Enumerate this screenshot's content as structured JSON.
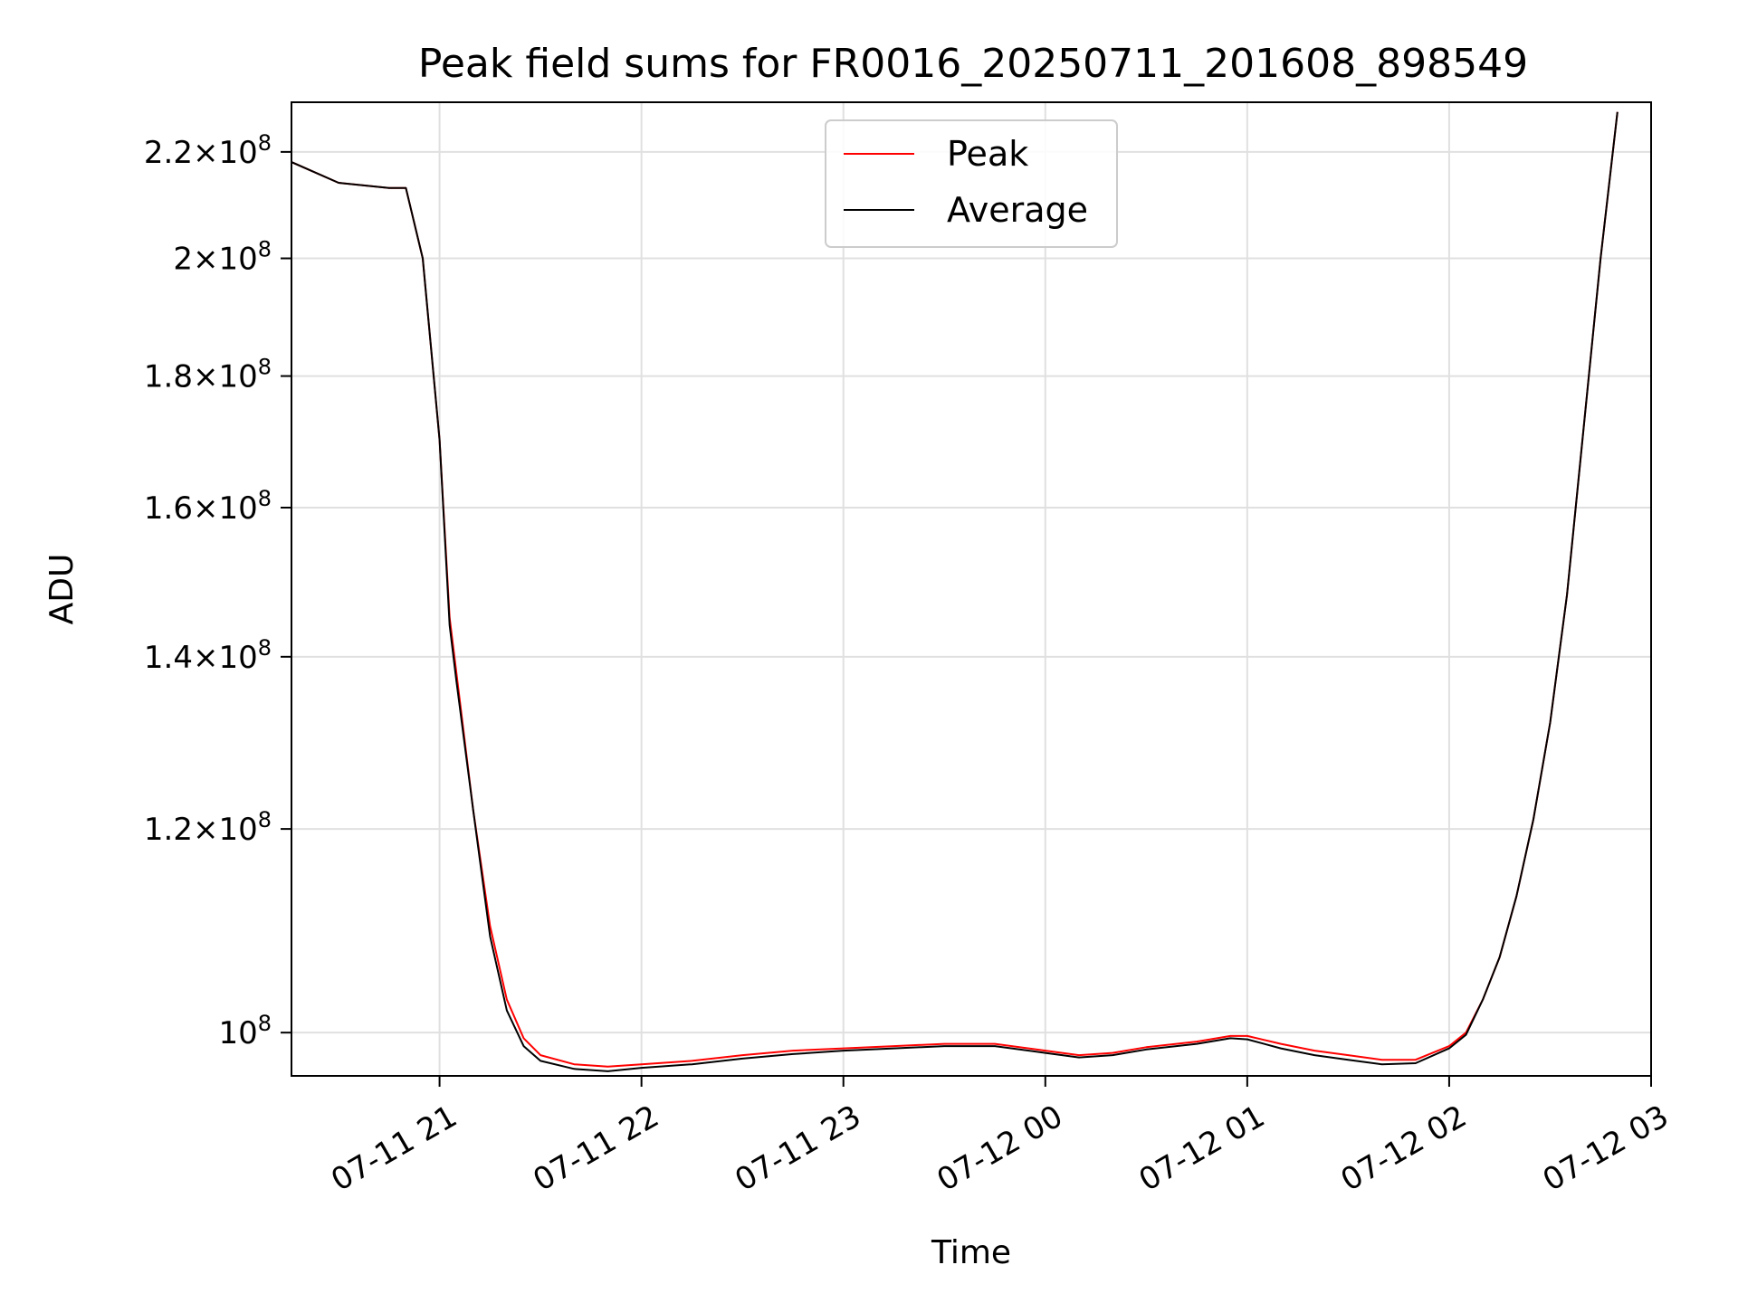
{
  "chart_data": {
    "type": "line",
    "title": "Peak field sums for FR0016_20250711_201608_898549",
    "xlabel": "Time",
    "ylabel": "ADU",
    "xlim": [
      "07-11 20:16",
      "07-12 03:00"
    ],
    "ylim": [
      96200000.0,
      230000000.0
    ],
    "yscale": "log",
    "grid": true,
    "legend_position": "top-center",
    "x_ticks": [
      "07-11 21",
      "07-11 22",
      "07-11 23",
      "07-12 00",
      "07-12 01",
      "07-12 02",
      "07-12 03"
    ],
    "y_ticks": [
      {
        "value": 100000000.0,
        "mantissa": "",
        "exponent": "8"
      },
      {
        "value": 120000000.0,
        "mantissa": "1.2",
        "exponent": "8"
      },
      {
        "value": 140000000.0,
        "mantissa": "1.4",
        "exponent": "8"
      },
      {
        "value": 160000000.0,
        "mantissa": "1.6",
        "exponent": "8"
      },
      {
        "value": 180000000.0,
        "mantissa": "1.8",
        "exponent": "8"
      },
      {
        "value": 200000000.0,
        "mantissa": "2",
        "exponent": "8"
      },
      {
        "value": 220000000.0,
        "mantissa": "2.2",
        "exponent": "8"
      }
    ],
    "series": [
      {
        "name": "Peak",
        "color": "#ff0000",
        "x": [
          "07-11 20:16",
          "07-11 20:30",
          "07-11 20:45",
          "07-11 20:50",
          "07-11 20:55",
          "07-11 21:00",
          "07-11 21:03",
          "07-11 21:05",
          "07-11 21:10",
          "07-11 21:15",
          "07-11 21:20",
          "07-11 21:25",
          "07-11 21:30",
          "07-11 21:40",
          "07-11 21:50",
          "07-11 22:00",
          "07-11 22:15",
          "07-11 22:30",
          "07-11 22:45",
          "07-11 23:00",
          "07-11 23:15",
          "07-11 23:30",
          "07-11 23:45",
          "07-12 00:00",
          "07-12 00:10",
          "07-12 00:20",
          "07-12 00:30",
          "07-12 00:45",
          "07-12 00:55",
          "07-12 01:00",
          "07-12 01:10",
          "07-12 01:20",
          "07-12 01:30",
          "07-12 01:40",
          "07-12 01:50",
          "07-12 02:00",
          "07-12 02:05",
          "07-12 02:10",
          "07-12 02:15",
          "07-12 02:20",
          "07-12 02:25",
          "07-12 02:30",
          "07-12 02:35",
          "07-12 02:40",
          "07-12 02:45",
          "07-12 02:50"
        ],
        "values": [
          218000000.0,
          214000000.0,
          213000000.0,
          213000000.0,
          200000000.0,
          170000000.0,
          145000000.0,
          138000000.0,
          122000000.0,
          110000000.0,
          103000000.0,
          99500000.0,
          98000000.0,
          97200000.0,
          97000000.0,
          97200000.0,
          97500000.0,
          98000000.0,
          98400000.0,
          98600000.0,
          98800000.0,
          99000000.0,
          99000000.0,
          98400000.0,
          98000000.0,
          98200000.0,
          98700000.0,
          99200000.0,
          99700000.0,
          99700000.0,
          99000000.0,
          98400000.0,
          98000000.0,
          97600000.0,
          97600000.0,
          98800000.0,
          100000000.0,
          103000000.0,
          107000000.0,
          113000000.0,
          121000000.0,
          132000000.0,
          148000000.0,
          172000000.0,
          200000000.0,
          228000000.0
        ]
      },
      {
        "name": "Average",
        "color": "#000000",
        "x": [
          "07-11 20:16",
          "07-11 20:30",
          "07-11 20:45",
          "07-11 20:50",
          "07-11 20:55",
          "07-11 21:00",
          "07-11 21:03",
          "07-11 21:05",
          "07-11 21:10",
          "07-11 21:15",
          "07-11 21:20",
          "07-11 21:25",
          "07-11 21:30",
          "07-11 21:40",
          "07-11 21:50",
          "07-11 22:00",
          "07-11 22:15",
          "07-11 22:30",
          "07-11 22:45",
          "07-11 23:00",
          "07-11 23:15",
          "07-11 23:30",
          "07-11 23:45",
          "07-12 00:00",
          "07-12 00:10",
          "07-12 00:20",
          "07-12 00:30",
          "07-12 00:45",
          "07-12 00:55",
          "07-12 01:00",
          "07-12 01:10",
          "07-12 01:20",
          "07-12 01:30",
          "07-12 01:40",
          "07-12 01:50",
          "07-12 02:00",
          "07-12 02:05",
          "07-12 02:10",
          "07-12 02:15",
          "07-12 02:20",
          "07-12 02:25",
          "07-12 02:30",
          "07-12 02:35",
          "07-12 02:40",
          "07-12 02:45",
          "07-12 02:50"
        ],
        "values": [
          218000000.0,
          214000000.0,
          213000000.0,
          213000000.0,
          200000000.0,
          170000000.0,
          144000000.0,
          137000000.0,
          122000000.0,
          109000000.0,
          102000000.0,
          98800000.0,
          97500000.0,
          96800000.0,
          96600000.0,
          96900000.0,
          97200000.0,
          97700000.0,
          98100000.0,
          98400000.0,
          98600000.0,
          98800000.0,
          98800000.0,
          98200000.0,
          97800000.0,
          98000000.0,
          98500000.0,
          99000000.0,
          99500000.0,
          99400000.0,
          98600000.0,
          98000000.0,
          97600000.0,
          97200000.0,
          97300000.0,
          98600000.0,
          99800000.0,
          103000000.0,
          107000000.0,
          113000000.0,
          121000000.0,
          132000000.0,
          148000000.0,
          172000000.0,
          200000000.0,
          228000000.0
        ]
      }
    ]
  }
}
